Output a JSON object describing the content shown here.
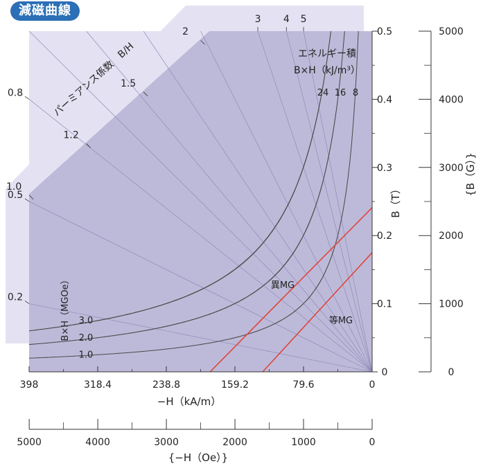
{
  "header": {
    "tag": "減磁曲線"
  },
  "chart_data": {
    "type": "line",
    "title": "",
    "xlabel": "−H（kA/m）",
    "xlabel2": "{−H（Oe）}",
    "ylabel": "B（T）",
    "ylabel2": "{B（G）}",
    "x_reversed": true,
    "xlim": [
      0,
      398
    ],
    "ylim": [
      0,
      0.5
    ],
    "x_ticks": [
      "398",
      "318.4",
      "238.8",
      "159.2",
      "79.6",
      "0"
    ],
    "x2_ticks": [
      "5000",
      "4000",
      "3000",
      "2000",
      "1000",
      "0"
    ],
    "y_ticks": [
      "0",
      "0.1",
      "0.2",
      "0.3",
      "0.4",
      "0.5"
    ],
    "y2_ticks": [
      "0",
      "1000",
      "2000",
      "3000",
      "4000",
      "5000"
    ],
    "permeance": {
      "label": "パーミアンス係数　B/H",
      "values": [
        0.2,
        0.5,
        0.8,
        1.0,
        1.2,
        1.5,
        2,
        3,
        4,
        5
      ],
      "labels": [
        "0.2",
        "0.5",
        "0.8",
        "1.0",
        "1.2",
        "1.5",
        "2",
        "3",
        "4",
        "5"
      ]
    },
    "energy_kJ": {
      "title": "エネルギー積",
      "unit": "B×H（kJ/m³）",
      "values": [
        8,
        16,
        24
      ],
      "labels": [
        "8",
        "16",
        "24"
      ]
    },
    "energy_MGOe": {
      "label": "B×H（MGOe）",
      "values": [
        1.0,
        2.0,
        3.0
      ],
      "labels": [
        "1.0",
        "2.0",
        "3.0"
      ]
    },
    "series": [
      {
        "name": "異MG",
        "color": "#e0453a",
        "points": [
          [
            188,
            0
          ],
          [
            0,
            0.241
          ]
        ]
      },
      {
        "name": "等MG",
        "color": "#e0453a",
        "points": [
          [
            127,
            0
          ],
          [
            0,
            0.175
          ]
        ]
      }
    ]
  }
}
